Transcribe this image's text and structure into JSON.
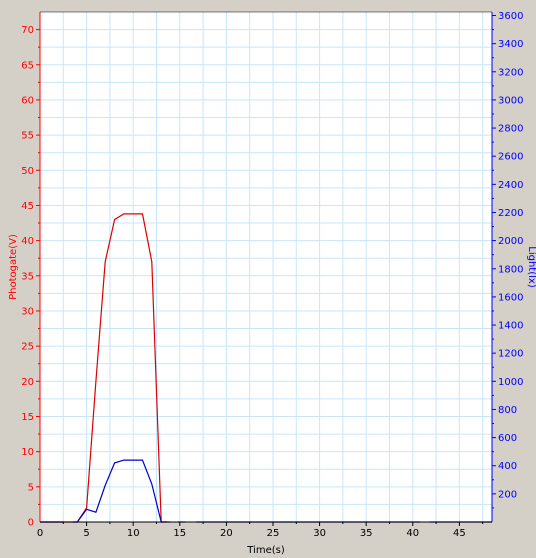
{
  "chart_data": {
    "type": "line",
    "xlabel": "Time(s)",
    "ylabel_left": "Photogate(V)",
    "ylabel_right": "Light(lx)",
    "xlim": [
      0,
      48.5
    ],
    "ylim_left": [
      0,
      72.5
    ],
    "ylim_right": [
      0,
      3625
    ],
    "x_ticks": [
      0,
      5,
      10,
      15,
      20,
      25,
      30,
      35,
      40,
      45
    ],
    "y_left_ticks": [
      0,
      5,
      10,
      15,
      20,
      25,
      30,
      35,
      40,
      45,
      50,
      55,
      60,
      65,
      70
    ],
    "y_right_ticks": [
      200,
      400,
      600,
      800,
      1000,
      1200,
      1400,
      1600,
      1800,
      2000,
      2200,
      2400,
      2600,
      2800,
      3000,
      3200,
      3400,
      3600
    ],
    "grid": true,
    "colors": {
      "left_axis": "#ff0000",
      "right_axis": "#0000ff",
      "grid": "#c8e6fa",
      "plot_bg": "#ffffff",
      "frame_bg": "#d4d0c8"
    },
    "series": [
      {
        "axis": "left",
        "color": "#dd0000",
        "points": [
          [
            0,
            0
          ],
          [
            4,
            0
          ],
          [
            5,
            2
          ],
          [
            6,
            20
          ],
          [
            7,
            37
          ],
          [
            8,
            43
          ],
          [
            9,
            43.8
          ],
          [
            10,
            43.8
          ],
          [
            11,
            43.8
          ],
          [
            12,
            37
          ],
          [
            13,
            0
          ],
          [
            14,
            0
          ]
        ]
      },
      {
        "axis": "right",
        "color": "#0000cc",
        "segments": [
          [
            [
              0,
              0
            ],
            [
              2.5,
              0
            ]
          ],
          [
            [
              3.5,
              0
            ],
            [
              4,
              0
            ],
            [
              5,
              90
            ],
            [
              6,
              70
            ],
            [
              7,
              260
            ],
            [
              8,
              420
            ],
            [
              9,
              440
            ],
            [
              10,
              440
            ],
            [
              11,
              440
            ],
            [
              12,
              270
            ],
            [
              13,
              0
            ],
            [
              13.6,
              0
            ]
          ],
          [
            [
              14.8,
              0
            ],
            [
              15.6,
              0
            ]
          ],
          [
            [
              16.8,
              0
            ],
            [
              40.8,
              0
            ]
          ],
          [
            [
              41.8,
              0
            ],
            [
              48.5,
              0
            ]
          ]
        ]
      }
    ]
  }
}
